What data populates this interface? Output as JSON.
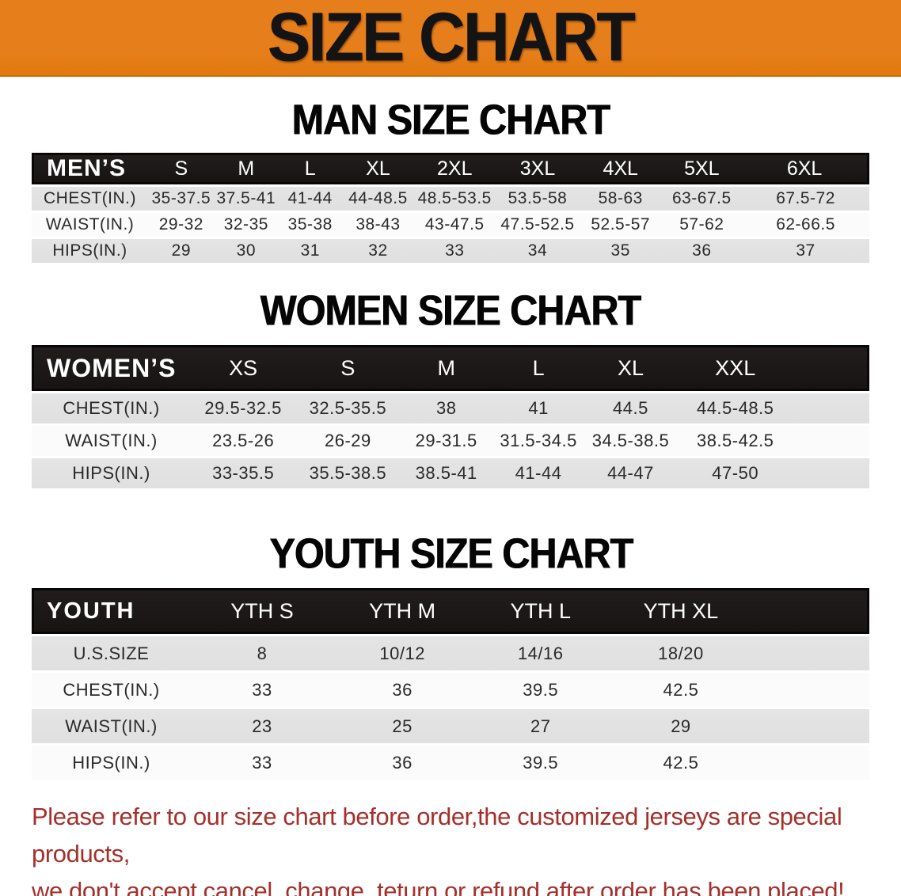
{
  "banner": {
    "title": "SIZE CHART"
  },
  "colors": {
    "banner_bg": "#e67e1b",
    "table_header_bg": "#181414",
    "row_gray": "#e0e0e0",
    "footer_red": "#a5302b"
  },
  "sections": [
    {
      "heading": "MAN SIZE CHART",
      "table": {
        "header_label": "MEN’S",
        "columns": [
          "S",
          "M",
          "L",
          "XL",
          "2XL",
          "3XL",
          "4XL",
          "5XL",
          "6XL"
        ],
        "rows": [
          {
            "label": "CHEST(IN.)",
            "values": [
              "35-37.5",
              "37.5-41",
              "41-44",
              "44-48.5",
              "48.5-53.5",
              "53.5-58",
              "58-63",
              "63-67.5",
              "67.5-72"
            ]
          },
          {
            "label": "WAIST(IN.)",
            "values": [
              "29-32",
              "32-35",
              "35-38",
              "38-43",
              "43-47.5",
              "47.5-52.5",
              "52.5-57",
              "57-62",
              "62-66.5"
            ]
          },
          {
            "label": "HIPS(IN.)",
            "values": [
              "29",
              "30",
              "31",
              "32",
              "33",
              "34",
              "35",
              "36",
              "37"
            ]
          }
        ]
      }
    },
    {
      "heading": "WOMEN SIZE CHART",
      "table": {
        "header_label": "WOMEN’S",
        "columns": [
          "XS",
          "S",
          "M",
          "L",
          "XL",
          "XXL"
        ],
        "rows": [
          {
            "label": "CHEST(IN.)",
            "values": [
              "29.5-32.5",
              "32.5-35.5",
              "38",
              "41",
              "44.5",
              "44.5-48.5"
            ]
          },
          {
            "label": "WAIST(IN.)",
            "values": [
              "23.5-26",
              "26-29",
              "29-31.5",
              "31.5-34.5",
              "34.5-38.5",
              "38.5-42.5"
            ]
          },
          {
            "label": "HIPS(IN.)",
            "values": [
              "33-35.5",
              "35.5-38.5",
              "38.5-41",
              "41-44",
              "44-47",
              "47-50"
            ]
          }
        ]
      }
    },
    {
      "heading": "YOUTH SIZE CHART",
      "table": {
        "header_label": "YOUTH",
        "columns": [
          "YTH S",
          "YTH M",
          "YTH L",
          "YTH XL"
        ],
        "rows": [
          {
            "label": "U.S.SIZE",
            "values": [
              "8",
              "10/12",
              "14/16",
              "18/20"
            ]
          },
          {
            "label": "CHEST(IN.)",
            "values": [
              "33",
              "36",
              "39.5",
              "42.5"
            ]
          },
          {
            "label": "WAIST(IN.)",
            "values": [
              "23",
              "25",
              "27",
              "29"
            ]
          },
          {
            "label": "HIPS(IN.)",
            "values": [
              "33",
              "36",
              "39.5",
              "42.5"
            ]
          }
        ]
      }
    }
  ],
  "footer": {
    "line1": "Please refer to our size chart before order,the customized jerseys are special products,",
    "line2": "we don't accept cancel, change, teturn or refund after order has been placed!"
  }
}
